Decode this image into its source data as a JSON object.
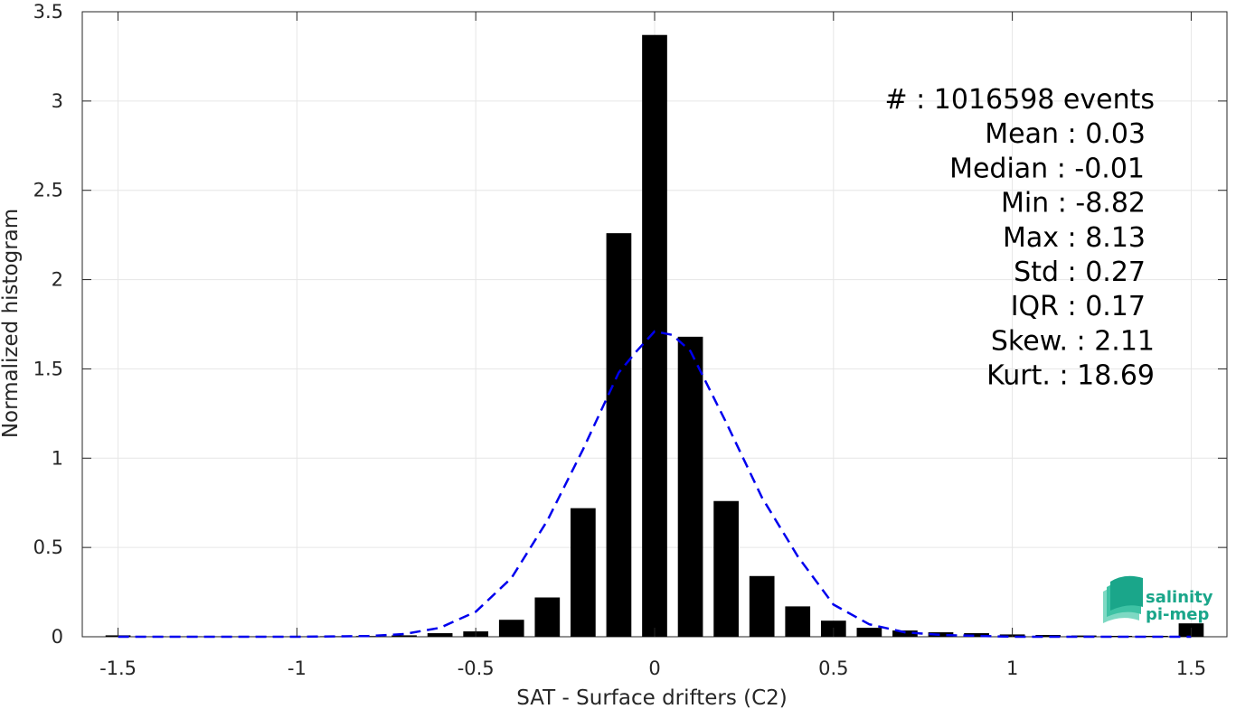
{
  "chart_data": {
    "type": "bar",
    "title": "",
    "xlabel": "SAT - Surface drifters (C2)",
    "ylabel": "Normalized histogram",
    "xlim": [
      -1.6,
      1.6
    ],
    "ylim": [
      0,
      3.5
    ],
    "grid": true,
    "xticks": [
      -1.5,
      -1,
      -0.5,
      0,
      0.5,
      1,
      1.5
    ],
    "xtick_labels": [
      "-1.5",
      "-1",
      "-0.5",
      "0",
      "0.5",
      "1",
      "1.5"
    ],
    "yticks": [
      0,
      0.5,
      1,
      1.5,
      2,
      2.5,
      3,
      3.5
    ],
    "ytick_labels": [
      "0",
      "0.5",
      "1",
      "1.5",
      "2",
      "2.5",
      "3",
      "3.5"
    ],
    "bar_width": 0.07,
    "bars": {
      "x": [
        -1.5,
        -1.4,
        -1.3,
        -1.2,
        -1.1,
        -1.0,
        -0.9,
        -0.8,
        -0.7,
        -0.6,
        -0.5,
        -0.4,
        -0.3,
        -0.2,
        -0.1,
        0.0,
        0.1,
        0.2,
        0.3,
        0.4,
        0.5,
        0.6,
        0.7,
        0.8,
        0.9,
        1.0,
        1.1,
        1.2,
        1.3,
        1.4,
        1.5
      ],
      "values": [
        0.008,
        0.002,
        0.002,
        0.002,
        0.002,
        0.002,
        0.003,
        0.004,
        0.008,
        0.02,
        0.03,
        0.095,
        0.22,
        0.72,
        2.26,
        3.37,
        1.68,
        0.76,
        0.34,
        0.17,
        0.09,
        0.05,
        0.035,
        0.025,
        0.02,
        0.013,
        0.01,
        0.007,
        0.005,
        0.005,
        0.075
      ]
    },
    "fit_curve": {
      "style": "dashed",
      "color": "#0000ee",
      "x": [
        -1.5,
        -1.4,
        -1.3,
        -1.2,
        -1.1,
        -1.0,
        -0.9,
        -0.8,
        -0.7,
        -0.6,
        -0.5,
        -0.4,
        -0.3,
        -0.2,
        -0.1,
        -0.05,
        0.0,
        0.05,
        0.1,
        0.2,
        0.3,
        0.4,
        0.5,
        0.6,
        0.7,
        0.8,
        0.9,
        1.0,
        1.1,
        1.2,
        1.3,
        1.4,
        1.5
      ],
      "y": [
        0.0,
        0.0,
        0.0,
        0.0,
        0.0,
        0.0,
        0.002,
        0.004,
        0.015,
        0.05,
        0.14,
        0.33,
        0.65,
        1.05,
        1.48,
        1.6,
        1.71,
        1.69,
        1.6,
        1.2,
        0.78,
        0.45,
        0.18,
        0.07,
        0.025,
        0.01,
        0.005,
        0.0,
        0.0,
        0.0,
        0.0,
        0.0,
        0.0
      ]
    }
  },
  "stats": [
    {
      "label": "#  : 1016598 events"
    },
    {
      "label": "Mean : 0.03"
    },
    {
      "label": "Median : -0.01"
    },
    {
      "label": "Min : -8.82"
    },
    {
      "label": "Max : 8.13"
    },
    {
      "label": "Std : 0.27"
    },
    {
      "label": "IQR : 0.17"
    },
    {
      "label": "Skew. : 2.11"
    },
    {
      "label": "Kurt. : 18.69"
    }
  ],
  "logo": {
    "line1": "salinity",
    "line2": "pi-mep",
    "color": "#1aa68a"
  },
  "colors": {
    "bars": "#000000",
    "grid": "#e6e6e6",
    "axes": "#262626"
  }
}
